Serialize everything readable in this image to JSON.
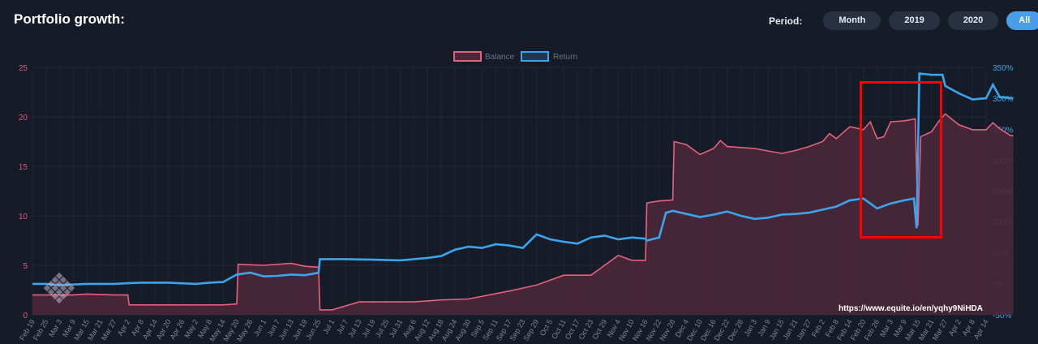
{
  "header": {
    "title": "Portfolio growth:",
    "period_label": "Period:",
    "period_options": [
      "Month",
      "2019",
      "2020",
      "All"
    ],
    "period_selected": "All"
  },
  "colors": {
    "balance": "#e6617d",
    "balance_fill": "#4a2839",
    "return": "#3ba4ef",
    "highlight_box": "#ff0000"
  },
  "chart_data": {
    "type": "area",
    "legend": [
      "Balance",
      "Return"
    ],
    "legend_position": "top-center",
    "left_axis": {
      "range": [
        0,
        25
      ],
      "ticks": [
        "0",
        "5",
        "10",
        "15",
        "20",
        "25"
      ]
    },
    "right_axis": {
      "range": [
        -50,
        350
      ],
      "ticks": [
        "-50%",
        "0%",
        "50%",
        "100%",
        "150%",
        "200%",
        "250%",
        "300%",
        "350%"
      ]
    },
    "x_ticks": [
      "Feb 19",
      "Feb 25",
      "Mar 3",
      "Mar 9",
      "Mar 15",
      "Mar 21",
      "Mar 27",
      "Apr 2",
      "Apr 8",
      "Apr 14",
      "Apr 20",
      "Apr 26",
      "May 2",
      "May 8",
      "May 14",
      "May 20",
      "May 26",
      "Jun 1",
      "Jun 7",
      "Jun 13",
      "Jun 19",
      "Jun 25",
      "Jul 1",
      "Jul 7",
      "Jul 13",
      "Jul 19",
      "Jul 25",
      "Jul 31",
      "Aug 6",
      "Aug 12",
      "Aug 18",
      "Aug 24",
      "Aug 30",
      "Sep 5",
      "Sep 11",
      "Sep 17",
      "Sep 23",
      "Sep 29",
      "Oct 5",
      "Oct 11",
      "Oct 17",
      "Oct 23",
      "Oct 29",
      "Nov 4",
      "Nov 10",
      "Nov 16",
      "Nov 22",
      "Nov 28",
      "Dec 4",
      "Dec 10",
      "Dec 16",
      "Dec 22",
      "Dec 28",
      "Jan 3",
      "Jan 9",
      "Jan 15",
      "Jan 21",
      "Jan 27",
      "Feb 2",
      "Feb 8",
      "Feb 14",
      "Feb 20",
      "Feb 26",
      "Mar 3",
      "Mar 9",
      "Mar 15",
      "Mar 21",
      "Mar 27",
      "Apr 2",
      "Apr 8",
      "Apr 14"
    ],
    "series": [
      {
        "name": "Balance",
        "axis": "left",
        "points": [
          [
            0,
            2
          ],
          [
            3,
            2
          ],
          [
            4,
            2.1
          ],
          [
            6,
            2
          ],
          [
            7,
            2
          ],
          [
            7.1,
            1
          ],
          [
            14,
            1
          ],
          [
            15,
            1.1
          ],
          [
            15.1,
            5.1
          ],
          [
            17,
            5.0
          ],
          [
            19,
            5.2
          ],
          [
            20,
            4.9
          ],
          [
            21,
            4.8
          ],
          [
            21.1,
            0.5
          ],
          [
            22,
            0.5
          ],
          [
            24,
            1.3
          ],
          [
            28,
            1.3
          ],
          [
            30,
            1.5
          ],
          [
            32,
            1.6
          ],
          [
            35,
            2.4
          ],
          [
            37,
            3
          ],
          [
            39,
            4
          ],
          [
            41,
            4
          ],
          [
            42,
            5
          ],
          [
            43,
            6
          ],
          [
            44,
            5.5
          ],
          [
            45,
            5.5
          ],
          [
            45.1,
            11.3
          ],
          [
            46,
            11.5
          ],
          [
            47,
            11.6
          ],
          [
            47.1,
            17.5
          ],
          [
            48,
            17.2
          ],
          [
            49,
            16.2
          ],
          [
            50,
            16.8
          ],
          [
            50.5,
            17.6
          ],
          [
            51,
            17
          ],
          [
            53,
            16.8
          ],
          [
            55,
            16.3
          ],
          [
            56,
            16.6
          ],
          [
            57,
            17
          ],
          [
            58,
            17.5
          ],
          [
            58.5,
            18.3
          ],
          [
            59,
            17.8
          ],
          [
            60,
            19
          ],
          [
            61,
            18.7
          ],
          [
            61.5,
            19.5
          ],
          [
            62,
            17.8
          ],
          [
            62.5,
            18
          ],
          [
            63,
            19.5
          ],
          [
            64,
            19.6
          ],
          [
            64.8,
            19.8
          ],
          [
            65,
            9
          ],
          [
            65.2,
            18
          ],
          [
            66,
            18.5
          ],
          [
            66.5,
            19.5
          ],
          [
            67,
            20.3
          ],
          [
            68,
            19.2
          ],
          [
            69,
            18.7
          ],
          [
            70,
            18.7
          ],
          [
            70.5,
            19.4
          ],
          [
            71,
            18.8
          ],
          [
            71.8,
            18.1
          ],
          [
            72,
            18.1
          ]
        ]
      },
      {
        "name": "Return",
        "axis": "right",
        "points": [
          [
            0,
            0
          ],
          [
            1,
            0
          ],
          [
            2,
            -2
          ],
          [
            4,
            0
          ],
          [
            6,
            0
          ],
          [
            7,
            1
          ],
          [
            8,
            2
          ],
          [
            10,
            2
          ],
          [
            12,
            0
          ],
          [
            13,
            2
          ],
          [
            14,
            3
          ],
          [
            15,
            15
          ],
          [
            16,
            18
          ],
          [
            17,
            12
          ],
          [
            18,
            13
          ],
          [
            19,
            15
          ],
          [
            20,
            14
          ],
          [
            21,
            18
          ],
          [
            21.1,
            40
          ],
          [
            23,
            40
          ],
          [
            25,
            39
          ],
          [
            27,
            38
          ],
          [
            28,
            40
          ],
          [
            29,
            42
          ],
          [
            30,
            45
          ],
          [
            31,
            55
          ],
          [
            32,
            60
          ],
          [
            33,
            58
          ],
          [
            34,
            64
          ],
          [
            35,
            62
          ],
          [
            36,
            58
          ],
          [
            37,
            80
          ],
          [
            38,
            72
          ],
          [
            39,
            68
          ],
          [
            40,
            65
          ],
          [
            41,
            75
          ],
          [
            42,
            78
          ],
          [
            43,
            72
          ],
          [
            44,
            75
          ],
          [
            45,
            73
          ],
          [
            45.1,
            70
          ],
          [
            46,
            75
          ],
          [
            46.5,
            115
          ],
          [
            47,
            118
          ],
          [
            48,
            113
          ],
          [
            49,
            108
          ],
          [
            50,
            112
          ],
          [
            51,
            117
          ],
          [
            52,
            110
          ],
          [
            53,
            105
          ],
          [
            54,
            107
          ],
          [
            55,
            112
          ],
          [
            56,
            113
          ],
          [
            57,
            115
          ],
          [
            58,
            120
          ],
          [
            59,
            125
          ],
          [
            60,
            135
          ],
          [
            61,
            138
          ],
          [
            62,
            122
          ],
          [
            63,
            130
          ],
          [
            64,
            135
          ],
          [
            64.7,
            138
          ],
          [
            64.9,
            90
          ],
          [
            65.1,
            340
          ],
          [
            66,
            338
          ],
          [
            66.8,
            338
          ],
          [
            67,
            320
          ],
          [
            68,
            308
          ],
          [
            69,
            298
          ],
          [
            70,
            300
          ],
          [
            70.5,
            322
          ],
          [
            71,
            302
          ],
          [
            71.8,
            300
          ],
          [
            72,
            300
          ]
        ]
      }
    ],
    "annotation": {
      "watermark": "https://www.equite.io/en/yqhy9NiHDA"
    }
  }
}
